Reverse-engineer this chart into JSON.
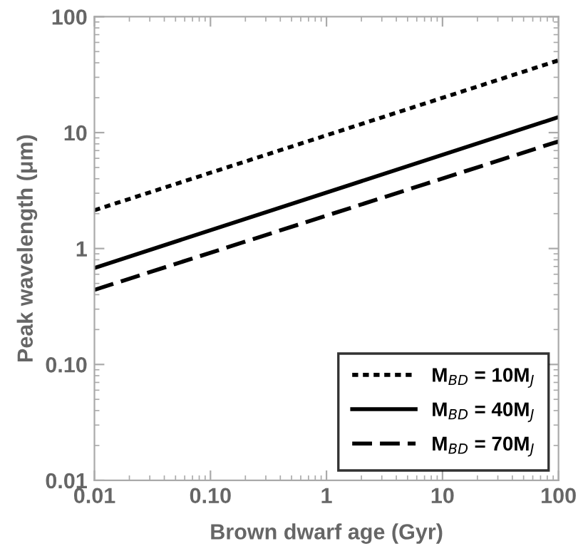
{
  "chart_data": {
    "type": "line",
    "xlabel": "Brown dwarf age (Gyr)",
    "ylabel": "Peak wavelength (μm)",
    "log": "xy",
    "x": [
      0.01,
      100
    ],
    "series": [
      {
        "name": "M$_{BD}$ = 10M$_{J}$",
        "color": "#000000",
        "line_style": "dotted",
        "values": [
          2.14,
          42
        ]
      },
      {
        "name": "M$_{BD}$ = 40M$_{J}$",
        "color": "#000000",
        "line_style": "solid",
        "values": [
          0.68,
          13.6
        ]
      },
      {
        "name": "M$_{BD}$ = 70M$_{J}$",
        "color": "#000000",
        "line_style": "dashed",
        "values": [
          0.44,
          8.4
        ]
      }
    ],
    "xlim": [
      0.01,
      100
    ],
    "ylim": [
      0.01,
      100
    ],
    "xticks": [
      0.01,
      {
        "value": 0.1,
        "label": "0.10"
      },
      1,
      10,
      100
    ],
    "yticks": [
      0.01,
      {
        "value": 0.1,
        "label": "0.10"
      },
      1,
      10,
      100
    ],
    "grid": false,
    "legend": "bottom right",
    "marker": "none"
  }
}
